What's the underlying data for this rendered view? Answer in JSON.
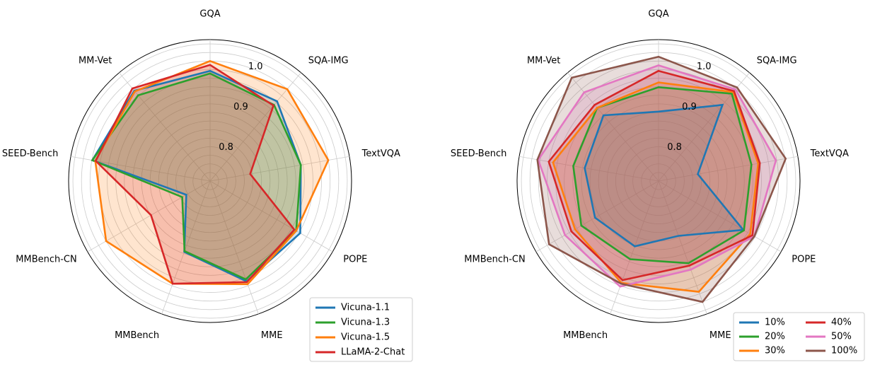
{
  "chart_data": [
    {
      "type": "radar",
      "axes": [
        "GQA",
        "SQA-IMG",
        "TextVQA",
        "POPE",
        "MME",
        "MMBench",
        "MMBench-CN",
        "SEED-Bench",
        "MM-Vet"
      ],
      "rlim": [
        0.72,
        1.05
      ],
      "radial_ticks": [
        0.8,
        0.9,
        1.0
      ],
      "radial_tick_labels": [
        "0.8",
        "0.9",
        "1.0"
      ],
      "grid": true,
      "legend_position": "bottom-right",
      "legend_columns": 1,
      "series": [
        {
          "name": "Vicuna-1.1",
          "color": "#1f77b4",
          "values": [
            0.977,
            0.963,
            0.935,
            0.963,
            0.969,
            0.896,
            0.784,
            0.999,
            0.995
          ]
        },
        {
          "name": "Vicuna-1.3",
          "color": "#2ca02c",
          "values": [
            0.971,
            0.952,
            0.935,
            0.952,
            0.964,
            0.894,
            0.795,
            0.999,
            0.981
          ]
        },
        {
          "name": "Vicuna-1.5",
          "color": "#ff7f0e",
          "values": [
            1.0,
            1.0,
            1.0,
            0.952,
            0.976,
            0.975,
            1.0,
            0.992,
            0.993
          ]
        },
        {
          "name": "LLaMA-2-Chat",
          "color": "#d62728",
          "values": [
            0.991,
            0.95,
            0.815,
            0.947,
            0.971,
            0.975,
            0.879,
            0.991,
            1.002
          ]
        }
      ]
    },
    {
      "type": "radar",
      "axes": [
        "GQA",
        "SQA-IMG",
        "TextVQA",
        "POPE",
        "MME",
        "MMBench",
        "MMBench-CN",
        "SEED-Bench",
        "MM-Vet"
      ],
      "rlim": [
        0.72,
        1.05
      ],
      "radial_ticks": [
        0.8,
        0.9,
        1.0
      ],
      "radial_tick_labels": [
        "0.8",
        "0.9",
        "1.0"
      ],
      "grid": true,
      "legend_position": "bottom-right",
      "legend_columns": 2,
      "series": [
        {
          "name": "10%",
          "color": "#1f77b4",
          "values": [
            0.882,
            0.952,
            0.813,
            0.948,
            0.856,
            0.882,
            0.891,
            0.895,
            0.92
          ]
        },
        {
          "name": "20%",
          "color": "#2ca02c",
          "values": [
            0.939,
            0.986,
            0.94,
            0.95,
            0.924,
            0.914,
            0.928,
            0.922,
            0.943
          ]
        },
        {
          "name": "30%",
          "color": "#ff7f0e",
          "values": [
            0.95,
            0.991,
            0.956,
            0.967,
            0.995,
            0.973,
            0.945,
            0.97,
            0.943
          ]
        },
        {
          "name": "40%",
          "color": "#d62728",
          "values": [
            0.977,
            0.994,
            0.96,
            0.973,
            0.93,
            0.966,
            0.955,
            0.98,
            0.952
          ]
        },
        {
          "name": "50%",
          "color": "#e377c2",
          "values": [
            0.99,
            0.999,
            0.998,
            0.978,
            0.94,
            0.982,
            0.972,
            1.005,
            0.99
          ]
        },
        {
          "name": "100%",
          "color": "#8c564b",
          "values": [
            1.01,
            1.005,
            1.021,
            0.978,
            1.02,
            0.975,
            1.015,
            1.007,
            1.035
          ]
        }
      ]
    }
  ]
}
